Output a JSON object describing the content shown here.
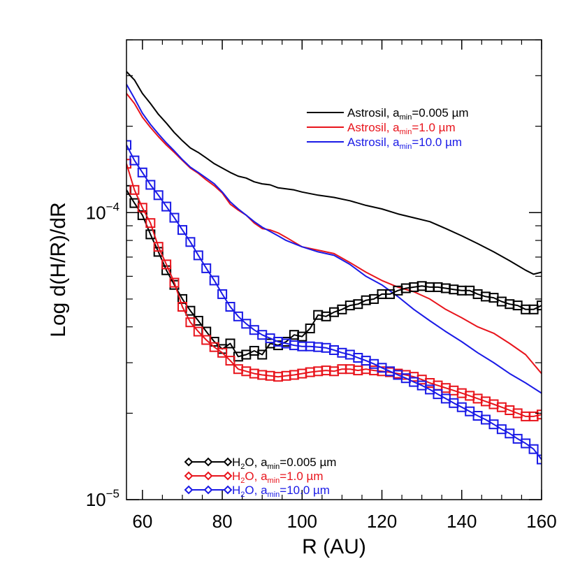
{
  "chart_data": {
    "type": "line",
    "xlabel": "R (AU)",
    "ylabel": "Log d(H/R)/dR",
    "xlim": [
      56,
      160
    ],
    "ylim": [
      1e-05,
      0.0004
    ],
    "yscale": "log",
    "xticks": [
      60,
      80,
      100,
      120,
      140,
      160
    ],
    "xtick_labels": [
      "60",
      "80",
      "100",
      "120",
      "140",
      "160"
    ],
    "yticks": [
      {
        "value": 0.0001,
        "base": "10",
        "exp": "−4"
      },
      {
        "value": 1e-05,
        "base": "10",
        "exp": "−5"
      }
    ],
    "legend_top_placement": "top-right",
    "legend_bottom_placement": "bottom-center",
    "series": [
      {
        "name": "Astrosil, a_min=0.005 µm",
        "legend": {
          "pre": "Astrosil, a",
          "sub": "min",
          "post": "=0.005 µm"
        },
        "group": "astrosil",
        "color": "#000000",
        "marker": "none",
        "x": [
          56,
          58,
          60,
          62,
          64,
          66,
          68,
          70,
          72,
          74,
          76,
          78,
          80,
          82,
          84,
          86,
          88,
          90,
          92,
          94,
          96,
          98,
          100,
          104,
          108,
          112,
          116,
          120,
          124,
          128,
          132,
          136,
          140,
          144,
          148,
          152,
          156,
          158,
          160
        ],
        "values": [
          0.00031,
          0.00029,
          0.00026,
          0.00024,
          0.00022,
          0.000205,
          0.00019,
          0.000178,
          0.000168,
          0.000162,
          0.000155,
          0.000148,
          0.000143,
          0.000138,
          0.000134,
          0.000132,
          0.000128,
          0.000126,
          0.000125,
          0.000122,
          0.000121,
          0.00012,
          0.000118,
          0.000115,
          0.000113,
          0.00011,
          0.000106,
          0.000103,
          9.9e-05,
          9.6e-05,
          9.3e-05,
          8.8e-05,
          8.3e-05,
          7.8e-05,
          7.3e-05,
          6.8e-05,
          6.3e-05,
          6.1e-05,
          6.2e-05
        ]
      },
      {
        "name": "Astrosil, a_min=1.0 µm",
        "legend": {
          "pre": "Astrosil, a",
          "sub": "min",
          "post": "=1.0 µm"
        },
        "group": "astrosil",
        "color": "#e8141c",
        "marker": "none",
        "x": [
          56,
          58,
          60,
          62,
          64,
          66,
          68,
          70,
          72,
          74,
          76,
          78,
          80,
          82,
          84,
          86,
          88,
          90,
          92,
          94,
          96,
          100,
          104,
          108,
          112,
          116,
          120,
          124,
          128,
          132,
          136,
          140,
          144,
          148,
          152,
          156,
          160
        ],
        "values": [
          0.00026,
          0.00024,
          0.000215,
          0.000198,
          0.000184,
          0.000172,
          0.000162,
          0.000152,
          0.000143,
          0.000137,
          0.00013,
          0.000124,
          0.000117,
          0.000107,
          0.000102,
          9.8e-05,
          9.2e-05,
          8.8e-05,
          8.7e-05,
          8.5e-05,
          8.2e-05,
          7.6e-05,
          7.4e-05,
          7.2e-05,
          6.7e-05,
          6.2e-05,
          5.8e-05,
          5.5e-05,
          5.3e-05,
          5e-05,
          4.6e-05,
          4.3e-05,
          4e-05,
          3.8e-05,
          3.5e-05,
          3.2e-05,
          2.75e-05
        ]
      },
      {
        "name": "Astrosil, a_min=10.0 µm",
        "legend": {
          "pre": "Astrosil, a",
          "sub": "min",
          "post": "=10.0 µm"
        },
        "group": "astrosil",
        "color": "#1a1ae6",
        "marker": "none",
        "x": [
          56,
          58,
          60,
          62,
          64,
          66,
          68,
          70,
          72,
          74,
          76,
          78,
          80,
          82,
          84,
          86,
          88,
          90,
          92,
          94,
          96,
          100,
          104,
          108,
          112,
          116,
          120,
          124,
          128,
          132,
          136,
          140,
          144,
          148,
          152,
          156,
          160
        ],
        "values": [
          0.00028,
          0.00025,
          0.000222,
          0.000203,
          0.000188,
          0.000175,
          0.000164,
          0.000153,
          0.000144,
          0.000138,
          0.000132,
          0.000126,
          0.000118,
          0.000109,
          0.000103,
          9.8e-05,
          9.3e-05,
          8.9e-05,
          8.6e-05,
          8.3e-05,
          8e-05,
          7.6e-05,
          7.3e-05,
          7.1e-05,
          6.6e-05,
          6e-05,
          5.6e-05,
          5.1e-05,
          4.6e-05,
          4.2e-05,
          3.85e-05,
          3.55e-05,
          3.25e-05,
          3e-05,
          2.75e-05,
          2.55e-05,
          2.35e-05
        ]
      },
      {
        "name": "H2O, a_min=0.005 µm",
        "legend": {
          "pre": "H",
          "sub": "2",
          "mid": "O, a",
          "sub2": "min",
          "post": "=0.005 µm"
        },
        "group": "h2o",
        "color": "#000000",
        "marker": "square",
        "x": [
          56,
          58,
          60,
          62,
          64,
          66,
          68,
          70,
          72,
          74,
          76,
          78,
          80,
          82,
          84,
          86,
          88,
          90,
          92,
          94,
          96,
          98,
          100,
          102,
          104,
          106,
          108,
          110,
          112,
          114,
          116,
          118,
          120,
          122,
          124,
          126,
          128,
          130,
          132,
          134,
          136,
          138,
          140,
          142,
          144,
          146,
          148,
          150,
          152,
          154,
          156,
          158,
          160
        ],
        "values": [
          0.00012,
          0.000108,
          9.8e-05,
          8.4e-05,
          7.3e-05,
          6.3e-05,
          5.6e-05,
          5e-05,
          4.55e-05,
          4.2e-05,
          3.85e-05,
          3.55e-05,
          3.35e-05,
          3.5e-05,
          3.15e-05,
          3.2e-05,
          3.3e-05,
          3.2e-05,
          3.5e-05,
          3.45e-05,
          3.55e-05,
          3.75e-05,
          3.7e-05,
          3.95e-05,
          4.4e-05,
          4.35e-05,
          4.5e-05,
          4.6e-05,
          4.75e-05,
          4.8e-05,
          4.95e-05,
          5e-05,
          5.2e-05,
          5.2e-05,
          5.35e-05,
          5.45e-05,
          5.5e-05,
          5.55e-05,
          5.5e-05,
          5.5e-05,
          5.45e-05,
          5.4e-05,
          5.35e-05,
          5.35e-05,
          5.2e-05,
          5.1e-05,
          5.05e-05,
          4.9e-05,
          4.8e-05,
          4.75e-05,
          4.6e-05,
          4.6e-05,
          4.75e-05
        ]
      },
      {
        "name": "H2O, a_min=1.0 µm",
        "legend": {
          "pre": "H",
          "sub": "2",
          "mid": "O, a",
          "sub2": "min",
          "post": "=1.0 µm"
        },
        "group": "h2o",
        "color": "#e8141c",
        "marker": "square",
        "x": [
          56,
          58,
          60,
          62,
          64,
          66,
          68,
          70,
          72,
          74,
          76,
          78,
          80,
          82,
          84,
          86,
          88,
          90,
          92,
          94,
          96,
          98,
          100,
          102,
          104,
          106,
          108,
          110,
          112,
          114,
          116,
          118,
          120,
          122,
          124,
          126,
          128,
          130,
          132,
          134,
          136,
          138,
          140,
          142,
          144,
          146,
          148,
          150,
          152,
          154,
          156,
          158,
          160
        ],
        "values": [
          0.000148,
          0.00012,
          0.000104,
          9.2e-05,
          7.6e-05,
          6.6e-05,
          5.7e-05,
          4.7e-05,
          4.15e-05,
          3.85e-05,
          3.6e-05,
          3.4e-05,
          3.25e-05,
          3.05e-05,
          2.85e-05,
          2.8e-05,
          2.75e-05,
          2.72e-05,
          2.7e-05,
          2.68e-05,
          2.7e-05,
          2.72e-05,
          2.75e-05,
          2.78e-05,
          2.8e-05,
          2.82e-05,
          2.8e-05,
          2.85e-05,
          2.85e-05,
          2.82e-05,
          2.85e-05,
          2.82e-05,
          2.8e-05,
          2.78e-05,
          2.75e-05,
          2.72e-05,
          2.68e-05,
          2.62e-05,
          2.55e-05,
          2.5e-05,
          2.45e-05,
          2.4e-05,
          2.35e-05,
          2.3e-05,
          2.25e-05,
          2.2e-05,
          2.15e-05,
          2.1e-05,
          2.05e-05,
          2e-05,
          1.95e-05,
          1.95e-05,
          1.98e-05
        ]
      },
      {
        "name": "H2O, a_min=10.0 µm",
        "legend": {
          "pre": "H",
          "sub": "2",
          "mid": "O, a",
          "sub2": "min",
          "post": "=10.0 µm"
        },
        "group": "h2o",
        "color": "#1a1ae6",
        "marker": "square",
        "x": [
          56,
          58,
          60,
          62,
          64,
          66,
          68,
          70,
          72,
          74,
          76,
          78,
          80,
          82,
          84,
          86,
          88,
          90,
          92,
          94,
          96,
          98,
          100,
          102,
          104,
          106,
          108,
          110,
          112,
          114,
          116,
          118,
          120,
          122,
          124,
          126,
          128,
          130,
          132,
          134,
          136,
          138,
          140,
          142,
          144,
          146,
          148,
          150,
          152,
          154,
          156,
          158,
          160
        ],
        "values": [
          0.000172,
          0.000152,
          0.000138,
          0.000125,
          0.000115,
          0.000105,
          9.6e-05,
          8.7e-05,
          7.9e-05,
          7.1e-05,
          6.4e-05,
          5.8e-05,
          5.2e-05,
          4.7e-05,
          4.35e-05,
          4.1e-05,
          3.9e-05,
          3.75e-05,
          3.65e-05,
          3.55e-05,
          3.5e-05,
          3.45e-05,
          3.42e-05,
          3.42e-05,
          3.4e-05,
          3.38e-05,
          3.32e-05,
          3.25e-05,
          3.2e-05,
          3.12e-05,
          3.05e-05,
          2.97e-05,
          2.88e-05,
          2.8e-05,
          2.72e-05,
          2.65e-05,
          2.57e-05,
          2.5e-05,
          2.42e-05,
          2.33e-05,
          2.25e-05,
          2.17e-05,
          2.1e-05,
          2.03e-05,
          1.96e-05,
          1.9e-05,
          1.83e-05,
          1.76e-05,
          1.7e-05,
          1.63e-05,
          1.57e-05,
          1.5e-05,
          1.38e-05
        ]
      }
    ]
  }
}
